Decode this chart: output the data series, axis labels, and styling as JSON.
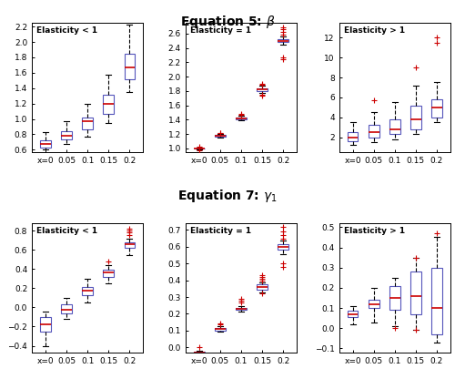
{
  "title1": "Equation 5: $\\beta$",
  "title2": "Equation 7: $\\gamma_1$",
  "x_labels": [
    "x=0",
    "0.05",
    "0.1",
    "0.15",
    "0.2"
  ],
  "x_positions": [
    1,
    2,
    3,
    4,
    5
  ],
  "box_facecolor": "white",
  "box_edgecolor": "#5555bb",
  "median_color": "#cc0000",
  "outlier_color": "#cc0000",
  "cap_color": "black",
  "whisker_color": "black",
  "eq5_e_lt1": {
    "medians": [
      0.68,
      0.78,
      0.97,
      1.2,
      1.67
    ],
    "q1": [
      0.63,
      0.73,
      0.87,
      1.07,
      1.52
    ],
    "q3": [
      0.72,
      0.84,
      1.02,
      1.32,
      1.85
    ],
    "whislo": [
      0.6,
      0.67,
      0.77,
      0.95,
      1.35
    ],
    "whishi": [
      0.83,
      0.97,
      1.2,
      1.57,
      2.22
    ],
    "fliers_hi": [
      [],
      [],
      [],
      [],
      []
    ],
    "fliers_lo": [
      [],
      [],
      [],
      [],
      []
    ],
    "ylim": [
      0.57,
      2.25
    ],
    "yticks": [
      0.6,
      0.8,
      1.0,
      1.2,
      1.4,
      1.6,
      1.8,
      2.0,
      2.2
    ]
  },
  "eq5_e_eq1": {
    "medians": [
      1.0,
      1.18,
      1.42,
      1.82,
      2.5
    ],
    "q1": [
      0.995,
      1.165,
      1.405,
      1.8,
      2.48
    ],
    "q3": [
      1.005,
      1.195,
      1.435,
      1.84,
      2.52
    ],
    "whislo": [
      0.99,
      1.155,
      1.395,
      1.775,
      2.44
    ],
    "whishi": [
      1.01,
      1.205,
      1.455,
      1.87,
      2.56
    ],
    "fliers_hi": [
      [
        1.02
      ],
      [
        1.21,
        1.22
      ],
      [
        1.47,
        1.48
      ],
      [
        1.89,
        1.9
      ],
      [
        2.58,
        2.62,
        2.66,
        2.68
      ]
    ],
    "fliers_lo": [
      [
        0.98
      ],
      [],
      [],
      [
        1.75,
        1.73
      ],
      [
        2.27,
        2.24
      ]
    ],
    "ylim": [
      0.95,
      2.75
    ],
    "yticks": [
      1.0,
      1.2,
      1.4,
      1.6,
      1.8,
      2.0,
      2.2,
      2.4,
      2.6
    ]
  },
  "eq5_e_gt1": {
    "medians": [
      2.0,
      2.5,
      2.8,
      3.8,
      5.0
    ],
    "q1": [
      1.6,
      2.0,
      2.3,
      2.8,
      4.0
    ],
    "q3": [
      2.5,
      3.2,
      3.8,
      5.2,
      5.8
    ],
    "whislo": [
      1.2,
      1.5,
      1.8,
      2.3,
      3.5
    ],
    "whishi": [
      3.5,
      4.5,
      5.5,
      7.2,
      7.5
    ],
    "fliers_hi": [
      [],
      [
        5.7
      ],
      [],
      [
        9.0
      ],
      [
        11.5,
        12.0
      ]
    ],
    "fliers_lo": [
      [],
      [],
      [],
      [],
      []
    ],
    "ylim": [
      0.5,
      13.5
    ],
    "yticks": [
      2,
      4,
      6,
      8,
      10,
      12
    ]
  },
  "eq7_e_lt1": {
    "medians": [
      -0.18,
      -0.02,
      0.18,
      0.37,
      0.66
    ],
    "q1": [
      -0.25,
      -0.06,
      0.13,
      0.32,
      0.62
    ],
    "q3": [
      -0.1,
      0.03,
      0.21,
      0.39,
      0.68
    ],
    "whislo": [
      -0.4,
      -0.12,
      0.05,
      0.25,
      0.55
    ],
    "whishi": [
      -0.04,
      0.1,
      0.3,
      0.44,
      0.72
    ],
    "fliers_hi": [
      [],
      [],
      [],
      [
        0.48
      ],
      [
        0.76,
        0.78,
        0.8,
        0.82
      ]
    ],
    "fliers_lo": [
      [],
      [],
      [],
      [],
      []
    ],
    "ylim": [
      -0.47,
      0.88
    ],
    "yticks": [
      -0.4,
      -0.2,
      0.0,
      0.2,
      0.4,
      0.6,
      0.8
    ]
  },
  "eq7_e_eq1": {
    "medians": [
      -0.03,
      0.11,
      0.23,
      0.36,
      0.6
    ],
    "q1": [
      -0.035,
      0.102,
      0.224,
      0.345,
      0.585
    ],
    "q3": [
      -0.025,
      0.118,
      0.236,
      0.375,
      0.615
    ],
    "whislo": [
      -0.04,
      0.095,
      0.215,
      0.33,
      0.555
    ],
    "whishi": [
      -0.02,
      0.125,
      0.245,
      0.385,
      0.635
    ],
    "fliers_hi": [
      [],
      [
        0.135,
        0.145
      ],
      [
        0.27,
        0.28,
        0.29
      ],
      [
        0.4,
        0.41,
        0.42,
        0.43
      ],
      [
        0.65,
        0.67,
        0.69,
        0.72
      ]
    ],
    "fliers_lo": [
      [
        0.0
      ],
      [],
      [],
      [
        0.32
      ],
      [
        0.5,
        0.48
      ]
    ],
    "ylim": [
      -0.03,
      0.74
    ],
    "yticks": [
      0.0,
      0.1,
      0.2,
      0.3,
      0.4,
      0.5,
      0.6,
      0.7
    ]
  },
  "eq7_e_gt1": {
    "medians": [
      0.07,
      0.12,
      0.15,
      0.16,
      0.1
    ],
    "q1": [
      0.055,
      0.1,
      0.09,
      0.07,
      -0.03
    ],
    "q3": [
      0.085,
      0.14,
      0.21,
      0.28,
      0.3
    ],
    "whislo": [
      0.02,
      0.03,
      0.01,
      -0.01,
      -0.07
    ],
    "whishi": [
      0.11,
      0.2,
      0.25,
      0.35,
      0.45
    ],
    "fliers_hi": [
      [],
      [],
      [],
      [
        0.35
      ],
      [
        0.47
      ]
    ],
    "fliers_lo": [
      [],
      [],
      [
        0.0
      ],
      [
        -0.01
      ],
      []
    ],
    "ylim": [
      -0.12,
      0.52
    ],
    "yticks": [
      -0.1,
      0.0,
      0.1,
      0.2,
      0.3,
      0.4,
      0.5
    ]
  }
}
